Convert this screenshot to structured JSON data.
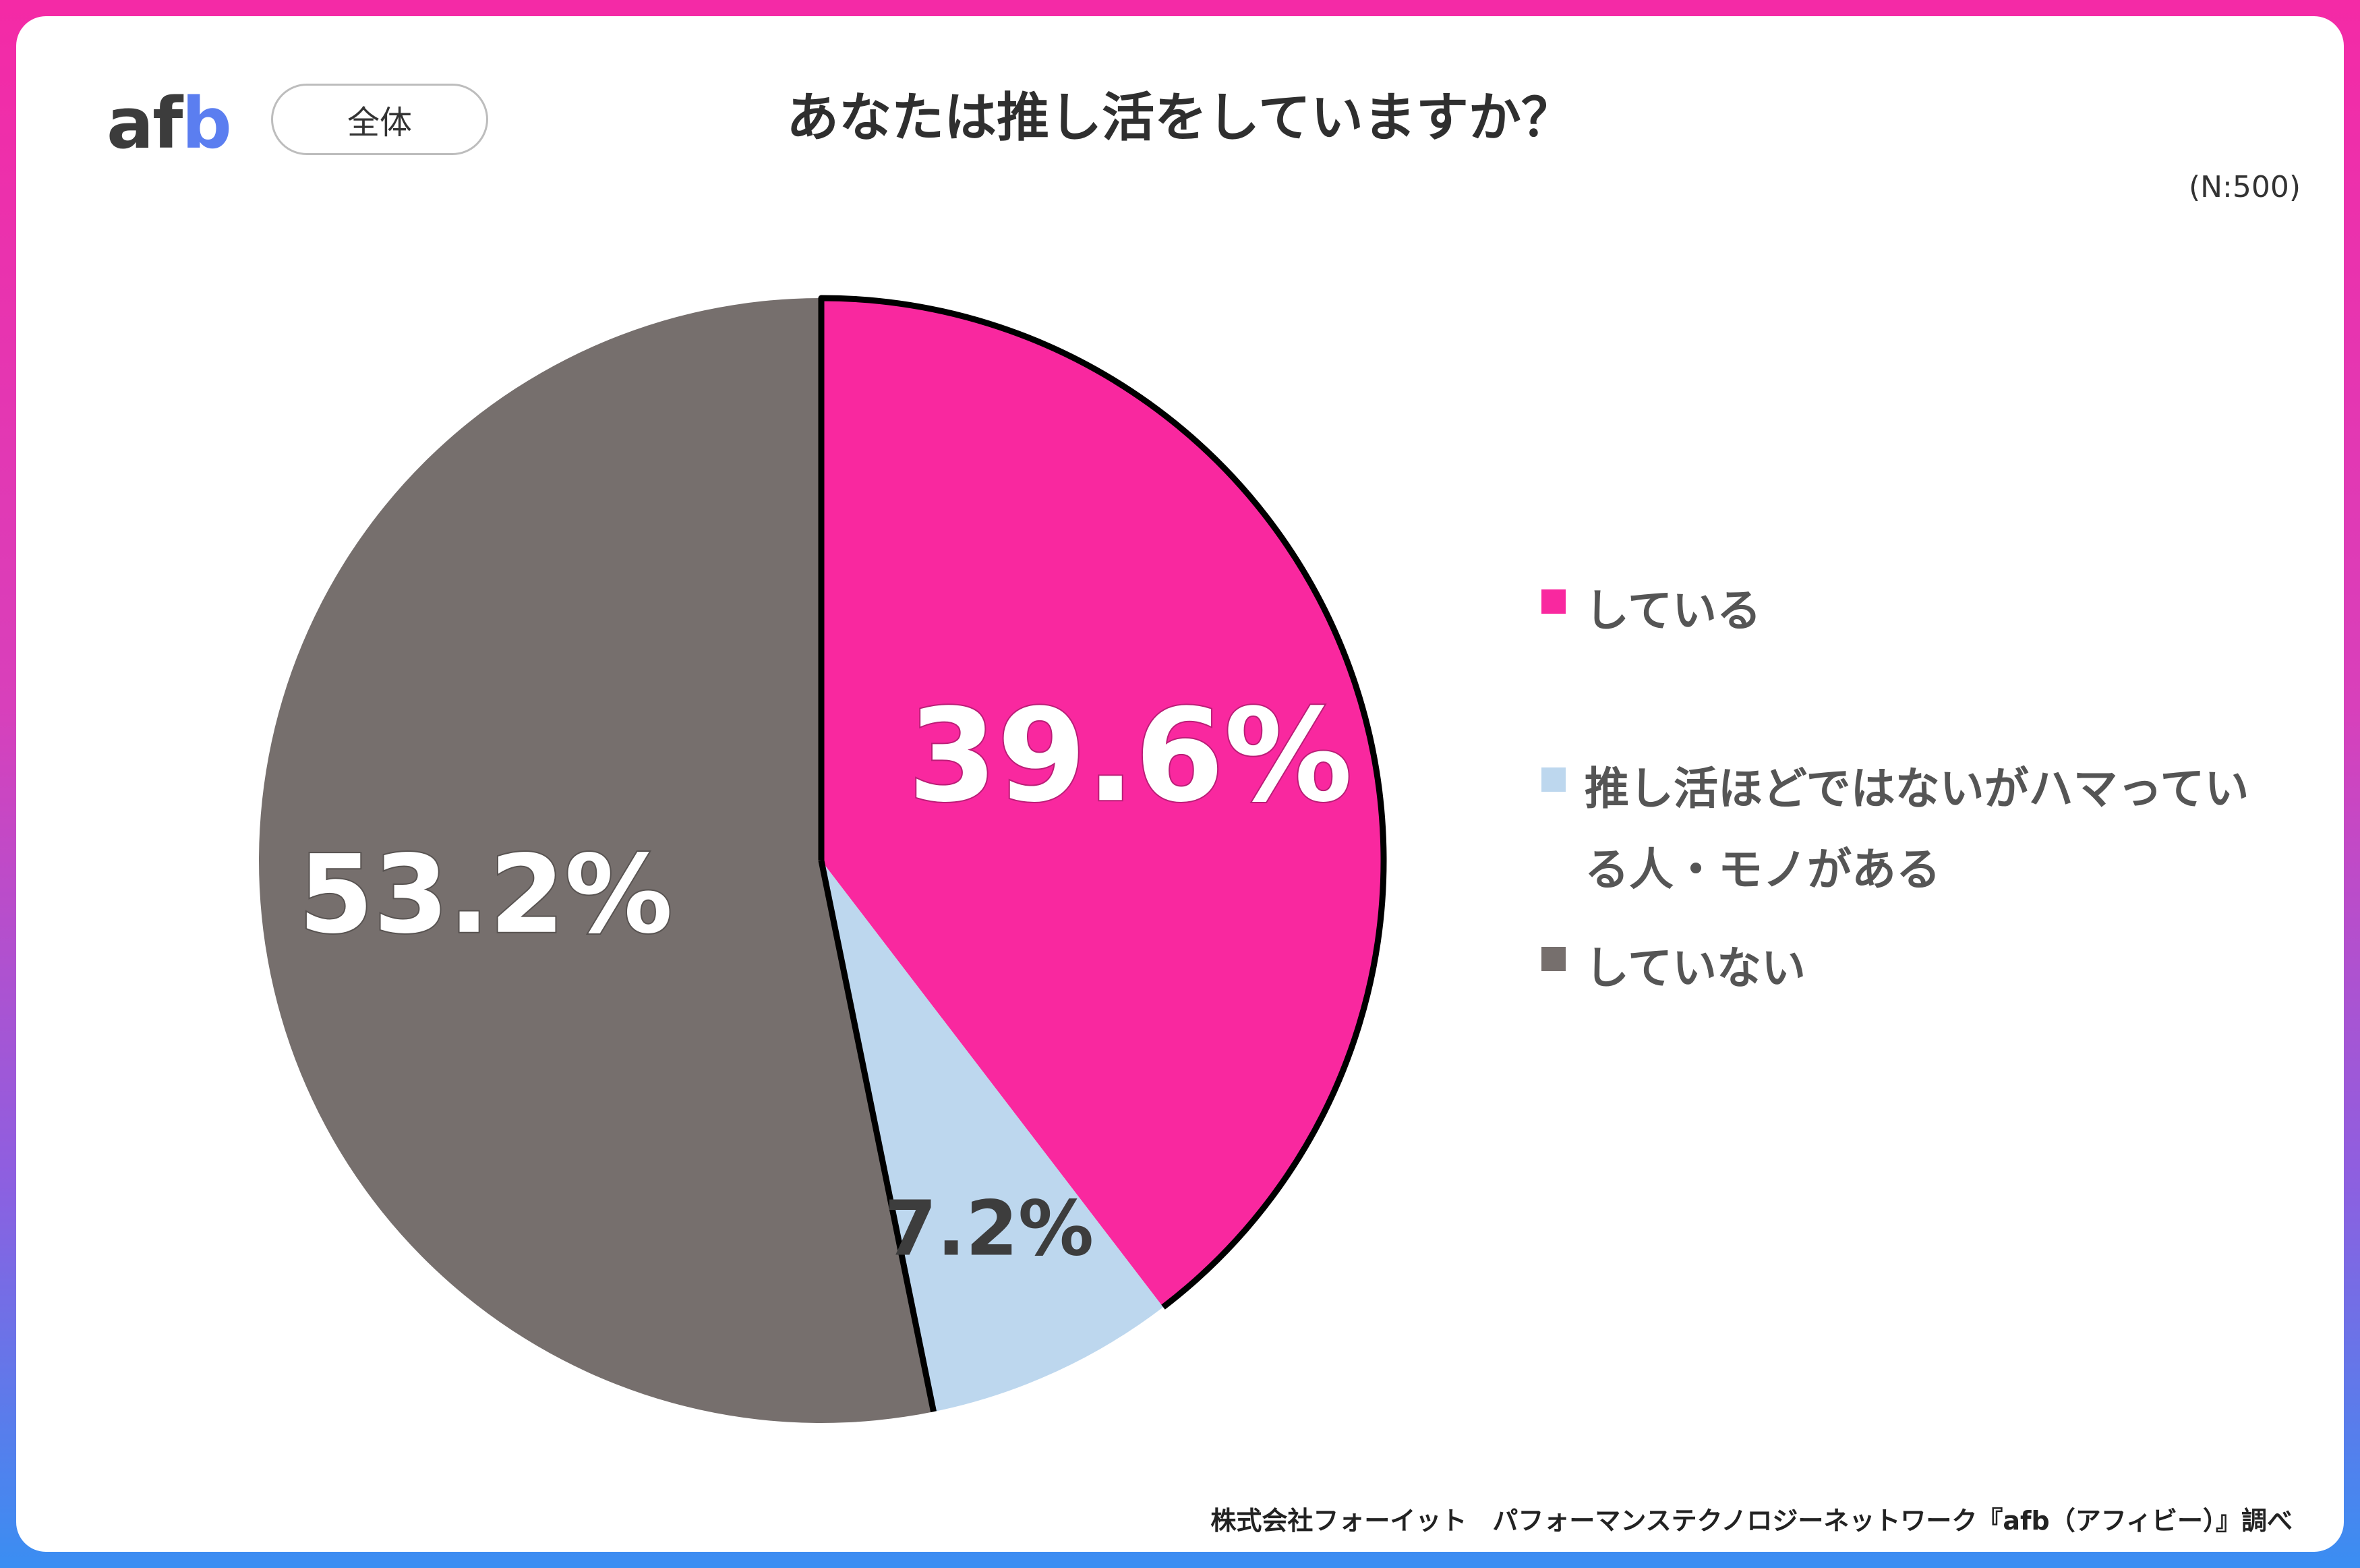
{
  "header": {
    "logo_af": "af",
    "logo_b": "b",
    "segment": "全体",
    "title": "あなたは推し活をしていますか？",
    "sample_size": "(N:500)"
  },
  "footnote": "株式会社フォーイット　パフォーマンステクノロジーネットワーク『afb（アフィビー）』調べ",
  "colors": {
    "doing": "#f9289f",
    "partial": "#bdd7ee",
    "not_doing": "#766f6d",
    "frame_top": "#f42aa6",
    "frame_bottom": "#3a8ef2"
  },
  "chart_data": {
    "type": "pie",
    "title": "あなたは推し活をしていますか？",
    "slices": [
      {
        "label": "している",
        "value": 39.6,
        "display": "39.6%",
        "color": "#f9289f"
      },
      {
        "label": "推し活ほどではないがハマっている人・モノがある",
        "value": 7.2,
        "display": "7.2%",
        "color": "#bdd7ee"
      },
      {
        "label": "していない",
        "value": 53.2,
        "display": "53.2%",
        "color": "#766f6d"
      }
    ],
    "legend_position": "right",
    "start_angle": "12 o'clock",
    "direction": "clockwise"
  }
}
